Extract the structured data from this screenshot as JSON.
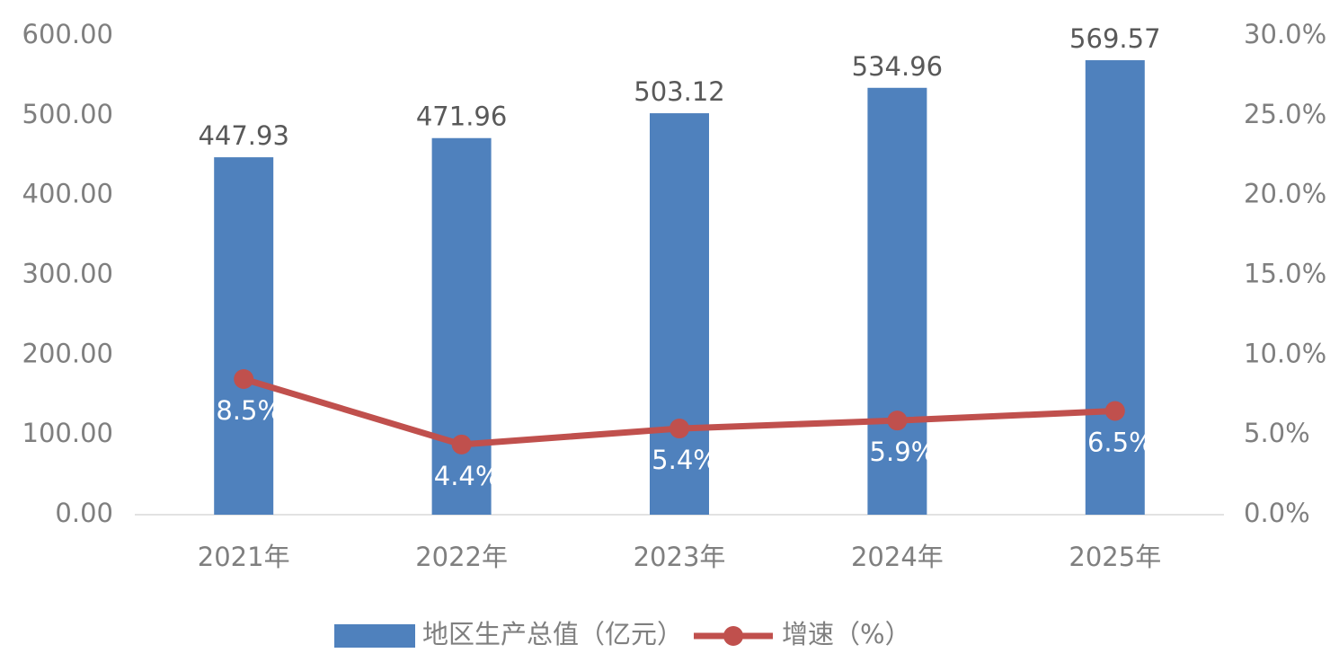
{
  "chart_data": {
    "type": "bar",
    "categories": [
      "2021年",
      "2022年",
      "2023年",
      "2024年",
      "2025年"
    ],
    "series": [
      {
        "name": "地区生产总值（亿元）",
        "type": "bar",
        "color": "#4f81bd",
        "values": [
          447.93,
          471.96,
          503.12,
          534.96,
          569.57
        ]
      },
      {
        "name": "增速（%）",
        "type": "line",
        "axis": "y2",
        "color": "#c0504d",
        "values": [
          8.5,
          4.4,
          5.4,
          5.9,
          6.5
        ],
        "value_labels": [
          "8.5%",
          "4.4%",
          "5.4%",
          "5.9%",
          "6.5%"
        ]
      }
    ],
    "ylim": [
      0,
      600
    ],
    "yticks": [
      {
        "value": 0,
        "label": "0.00"
      },
      {
        "value": 100,
        "label": "100.00"
      },
      {
        "value": 200,
        "label": "200.00"
      },
      {
        "value": 300,
        "label": "300.00"
      },
      {
        "value": 400,
        "label": "400.00"
      },
      {
        "value": 500,
        "label": "500.00"
      },
      {
        "value": 600,
        "label": "600.00"
      }
    ],
    "y2lim": [
      0,
      30
    ],
    "y2ticks": [
      {
        "value": 0,
        "label": "0.0%"
      },
      {
        "value": 5,
        "label": "5.0%"
      },
      {
        "value": 10,
        "label": "10.0%"
      },
      {
        "value": 15,
        "label": "15.0%"
      },
      {
        "value": 20,
        "label": "20.0%"
      },
      {
        "value": 25,
        "label": "25.0%"
      },
      {
        "value": 30,
        "label": "30.0%"
      }
    ],
    "grid": false,
    "legend": "bottom"
  }
}
